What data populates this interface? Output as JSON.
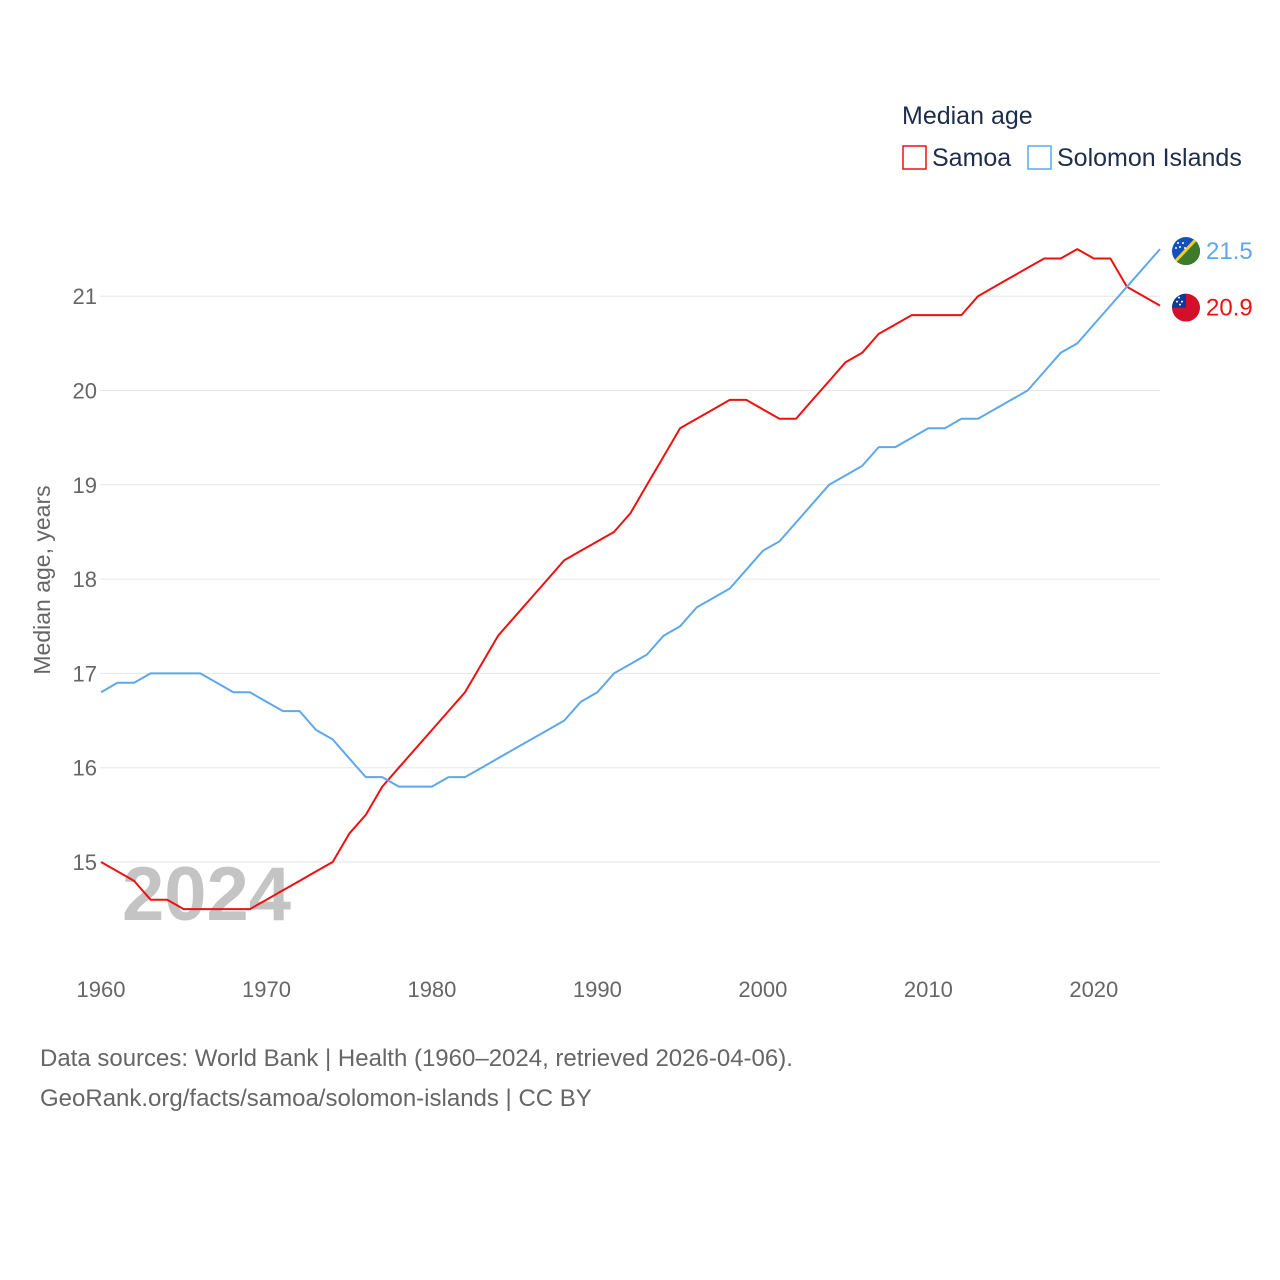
{
  "chart_data": {
    "type": "line",
    "title": "Median age",
    "ylabel": "Median age, years",
    "xlabel": "",
    "watermark_year": "2024",
    "xlim": [
      1960,
      2024
    ],
    "ylim": [
      14.0,
      21.8
    ],
    "x_ticks": [
      1960,
      1970,
      1980,
      1990,
      2000,
      2010,
      2020
    ],
    "y_ticks": [
      15,
      16,
      17,
      18,
      19,
      20,
      21
    ],
    "grid": true,
    "legend_position": "top-right",
    "x": [
      1960,
      1961,
      1962,
      1963,
      1964,
      1965,
      1966,
      1967,
      1968,
      1969,
      1970,
      1971,
      1972,
      1973,
      1974,
      1975,
      1976,
      1977,
      1978,
      1979,
      1980,
      1981,
      1982,
      1983,
      1984,
      1985,
      1986,
      1987,
      1988,
      1989,
      1990,
      1991,
      1992,
      1993,
      1994,
      1995,
      1996,
      1997,
      1998,
      1999,
      2000,
      2001,
      2002,
      2003,
      2004,
      2005,
      2006,
      2007,
      2008,
      2009,
      2010,
      2011,
      2012,
      2013,
      2014,
      2015,
      2016,
      2017,
      2018,
      2019,
      2020,
      2021,
      2022,
      2023,
      2024
    ],
    "series": [
      {
        "name": "Samoa",
        "color": "#ee1111",
        "end_label": "20.9",
        "values": [
          15.0,
          14.9,
          14.8,
          14.6,
          14.6,
          14.5,
          14.5,
          14.5,
          14.5,
          14.5,
          14.6,
          14.7,
          14.8,
          14.9,
          15.0,
          15.3,
          15.5,
          15.8,
          16.0,
          16.2,
          16.4,
          16.6,
          16.8,
          17.1,
          17.4,
          17.6,
          17.8,
          18.0,
          18.2,
          18.3,
          18.4,
          18.5,
          18.7,
          19.0,
          19.3,
          19.6,
          19.7,
          19.8,
          19.9,
          19.9,
          19.8,
          19.7,
          19.7,
          19.9,
          20.1,
          20.3,
          20.4,
          20.6,
          20.7,
          20.8,
          20.8,
          20.8,
          20.8,
          21.0,
          21.1,
          21.2,
          21.3,
          21.4,
          21.4,
          21.5,
          21.4,
          21.4,
          21.1,
          21.0,
          20.9
        ]
      },
      {
        "name": "Solomon Islands",
        "color": "#5ea8ea",
        "end_label": "21.5",
        "values": [
          16.8,
          16.9,
          16.9,
          17.0,
          17.0,
          17.0,
          17.0,
          16.9,
          16.8,
          16.8,
          16.7,
          16.6,
          16.6,
          16.4,
          16.3,
          16.1,
          15.9,
          15.9,
          15.8,
          15.8,
          15.8,
          15.9,
          15.9,
          16.0,
          16.1,
          16.2,
          16.3,
          16.4,
          16.5,
          16.7,
          16.8,
          17.0,
          17.1,
          17.2,
          17.4,
          17.5,
          17.7,
          17.8,
          17.9,
          18.1,
          18.3,
          18.4,
          18.6,
          18.8,
          19.0,
          19.1,
          19.2,
          19.4,
          19.4,
          19.5,
          19.6,
          19.6,
          19.7,
          19.7,
          19.8,
          19.9,
          20.0,
          20.2,
          20.4,
          20.5,
          20.7,
          20.9,
          21.1,
          21.3,
          21.5
        ]
      }
    ]
  },
  "footer": {
    "line1": "Data sources: World Bank | Health (1960–2024, retrieved 2026-04-06).",
    "line2": "GeoRank.org/facts/samoa/solomon-islands | CC BY"
  }
}
